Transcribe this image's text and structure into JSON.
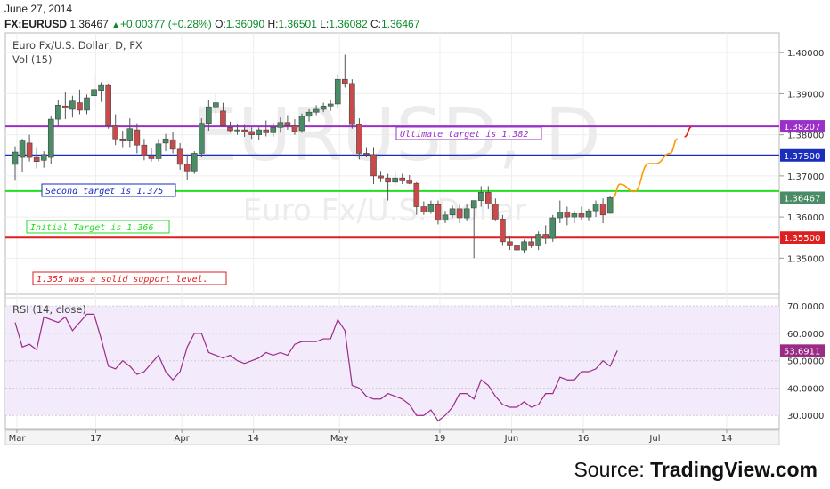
{
  "date": "June 27, 2014",
  "quote": {
    "symbol": "FX:EURUSD",
    "last": "1.36467",
    "change": "+0.00377 (+0.28%)",
    "open_label": "O:",
    "open": "1.36090",
    "high_label": "H:",
    "high": "1.36501",
    "low_label": "L:",
    "low": "1.36082",
    "close_label": "C:",
    "close": "1.36467",
    "up_color": "#0a8a2a"
  },
  "chart_data": [
    {
      "type": "candlestick",
      "title": "Euro Fx/U.S. Dollar, D, FX",
      "subtitle": "Vol (15)",
      "watermark_big": "EURUSD, D",
      "watermark_small": "Euro Fx/U.S. Dollar",
      "ylim": [
        1.3425,
        1.4035
      ],
      "price_ticks": [
        "1.40000",
        "1.39000",
        "1.38000",
        "1.37000",
        "1.36000",
        "1.35000"
      ],
      "x_ticks": [
        "Mar",
        "17",
        "Apr",
        "14",
        "May",
        "19",
        "Jun",
        "16",
        "Jul",
        "14"
      ],
      "candles": [
        {
          "o": 1.3728,
          "h": 1.3772,
          "l": 1.3688,
          "c": 1.3758
        },
        {
          "o": 1.3745,
          "h": 1.379,
          "l": 1.371,
          "c": 1.3785
        },
        {
          "o": 1.378,
          "h": 1.38,
          "l": 1.3735,
          "c": 1.3745
        },
        {
          "o": 1.3745,
          "h": 1.377,
          "l": 1.3718,
          "c": 1.3735
        },
        {
          "o": 1.3738,
          "h": 1.376,
          "l": 1.372,
          "c": 1.3752
        },
        {
          "o": 1.3745,
          "h": 1.3845,
          "l": 1.373,
          "c": 1.3838
        },
        {
          "o": 1.3838,
          "h": 1.3885,
          "l": 1.382,
          "c": 1.3872
        },
        {
          "o": 1.387,
          "h": 1.3905,
          "l": 1.3838,
          "c": 1.3865
        },
        {
          "o": 1.3862,
          "h": 1.3895,
          "l": 1.3842,
          "c": 1.3882
        },
        {
          "o": 1.3878,
          "h": 1.391,
          "l": 1.385,
          "c": 1.386
        },
        {
          "o": 1.386,
          "h": 1.3898,
          "l": 1.385,
          "c": 1.389
        },
        {
          "o": 1.3895,
          "h": 1.394,
          "l": 1.387,
          "c": 1.391
        },
        {
          "o": 1.3908,
          "h": 1.3928,
          "l": 1.388,
          "c": 1.392
        },
        {
          "o": 1.392,
          "h": 1.3925,
          "l": 1.3815,
          "c": 1.3822
        },
        {
          "o": 1.3822,
          "h": 1.385,
          "l": 1.3775,
          "c": 1.379
        },
        {
          "o": 1.379,
          "h": 1.381,
          "l": 1.377,
          "c": 1.3785
        },
        {
          "o": 1.3785,
          "h": 1.384,
          "l": 1.377,
          "c": 1.3815
        },
        {
          "o": 1.3812,
          "h": 1.3828,
          "l": 1.3755,
          "c": 1.3775
        },
        {
          "o": 1.3775,
          "h": 1.379,
          "l": 1.3738,
          "c": 1.375
        },
        {
          "o": 1.3748,
          "h": 1.3768,
          "l": 1.3735,
          "c": 1.3742
        },
        {
          "o": 1.3742,
          "h": 1.379,
          "l": 1.3736,
          "c": 1.3778
        },
        {
          "o": 1.378,
          "h": 1.3802,
          "l": 1.376,
          "c": 1.379
        },
        {
          "o": 1.3788,
          "h": 1.3808,
          "l": 1.3755,
          "c": 1.3765
        },
        {
          "o": 1.3765,
          "h": 1.378,
          "l": 1.3715,
          "c": 1.3728
        },
        {
          "o": 1.3728,
          "h": 1.3752,
          "l": 1.369,
          "c": 1.3712
        },
        {
          "o": 1.3712,
          "h": 1.376,
          "l": 1.3705,
          "c": 1.3755
        },
        {
          "o": 1.3755,
          "h": 1.384,
          "l": 1.3745,
          "c": 1.3828
        },
        {
          "o": 1.3828,
          "h": 1.3885,
          "l": 1.381,
          "c": 1.3868
        },
        {
          "o": 1.3868,
          "h": 1.3898,
          "l": 1.385,
          "c": 1.3878
        },
        {
          "o": 1.3858,
          "h": 1.3878,
          "l": 1.3828,
          "c": 1.3822
        },
        {
          "o": 1.3818,
          "h": 1.3832,
          "l": 1.3808,
          "c": 1.381
        },
        {
          "o": 1.381,
          "h": 1.3825,
          "l": 1.38,
          "c": 1.3812
        },
        {
          "o": 1.3812,
          "h": 1.3824,
          "l": 1.3795,
          "c": 1.3808
        },
        {
          "o": 1.3808,
          "h": 1.3818,
          "l": 1.379,
          "c": 1.38
        },
        {
          "o": 1.38,
          "h": 1.3818,
          "l": 1.3788,
          "c": 1.3812
        },
        {
          "o": 1.3812,
          "h": 1.3835,
          "l": 1.3796,
          "c": 1.3805
        },
        {
          "o": 1.3805,
          "h": 1.383,
          "l": 1.3795,
          "c": 1.3818
        },
        {
          "o": 1.3818,
          "h": 1.3842,
          "l": 1.3805,
          "c": 1.383
        },
        {
          "o": 1.383,
          "h": 1.3848,
          "l": 1.3812,
          "c": 1.3822
        },
        {
          "o": 1.3822,
          "h": 1.3838,
          "l": 1.38,
          "c": 1.3808
        },
        {
          "o": 1.381,
          "h": 1.3852,
          "l": 1.3805,
          "c": 1.3845
        },
        {
          "o": 1.3845,
          "h": 1.3862,
          "l": 1.3832,
          "c": 1.3855
        },
        {
          "o": 1.3855,
          "h": 1.3872,
          "l": 1.3848,
          "c": 1.3862
        },
        {
          "o": 1.3862,
          "h": 1.3878,
          "l": 1.3855,
          "c": 1.387
        },
        {
          "o": 1.387,
          "h": 1.3885,
          "l": 1.3858,
          "c": 1.3875
        },
        {
          "o": 1.3875,
          "h": 1.3948,
          "l": 1.3865,
          "c": 1.3935
        },
        {
          "o": 1.3935,
          "h": 1.3995,
          "l": 1.3915,
          "c": 1.3925
        },
        {
          "o": 1.3925,
          "h": 1.3935,
          "l": 1.3815,
          "c": 1.3825
        },
        {
          "o": 1.3825,
          "h": 1.384,
          "l": 1.374,
          "c": 1.3755
        },
        {
          "o": 1.3755,
          "h": 1.377,
          "l": 1.3745,
          "c": 1.3752
        },
        {
          "o": 1.3752,
          "h": 1.377,
          "l": 1.368,
          "c": 1.37
        },
        {
          "o": 1.37,
          "h": 1.3712,
          "l": 1.3685,
          "c": 1.3695
        },
        {
          "o": 1.3695,
          "h": 1.3705,
          "l": 1.364,
          "c": 1.3685
        },
        {
          "o": 1.3685,
          "h": 1.3712,
          "l": 1.3678,
          "c": 1.3695
        },
        {
          "o": 1.3695,
          "h": 1.3705,
          "l": 1.368,
          "c": 1.3688
        },
        {
          "o": 1.369,
          "h": 1.3702,
          "l": 1.368,
          "c": 1.3682
        },
        {
          "o": 1.3682,
          "h": 1.3685,
          "l": 1.3605,
          "c": 1.3625
        },
        {
          "o": 1.3625,
          "h": 1.3638,
          "l": 1.3605,
          "c": 1.3612
        },
        {
          "o": 1.3612,
          "h": 1.364,
          "l": 1.3608,
          "c": 1.363
        },
        {
          "o": 1.363,
          "h": 1.364,
          "l": 1.3582,
          "c": 1.3592
        },
        {
          "o": 1.3592,
          "h": 1.3615,
          "l": 1.3585,
          "c": 1.3605
        },
        {
          "o": 1.3605,
          "h": 1.3628,
          "l": 1.3598,
          "c": 1.362
        },
        {
          "o": 1.362,
          "h": 1.363,
          "l": 1.3585,
          "c": 1.3598
        },
        {
          "o": 1.3598,
          "h": 1.363,
          "l": 1.359,
          "c": 1.362
        },
        {
          "o": 1.3622,
          "h": 1.364,
          "l": 1.35,
          "c": 1.364
        },
        {
          "o": 1.364,
          "h": 1.3675,
          "l": 1.3625,
          "c": 1.366
        },
        {
          "o": 1.366,
          "h": 1.3675,
          "l": 1.362,
          "c": 1.3632
        },
        {
          "o": 1.3632,
          "h": 1.3645,
          "l": 1.359,
          "c": 1.3595
        },
        {
          "o": 1.3595,
          "h": 1.3605,
          "l": 1.353,
          "c": 1.354
        },
        {
          "o": 1.354,
          "h": 1.3555,
          "l": 1.352,
          "c": 1.353
        },
        {
          "o": 1.353,
          "h": 1.3545,
          "l": 1.351,
          "c": 1.352
        },
        {
          "o": 1.352,
          "h": 1.3545,
          "l": 1.3512,
          "c": 1.354
        },
        {
          "o": 1.354,
          "h": 1.3552,
          "l": 1.3525,
          "c": 1.353
        },
        {
          "o": 1.353,
          "h": 1.3565,
          "l": 1.352,
          "c": 1.3558
        },
        {
          "o": 1.3558,
          "h": 1.358,
          "l": 1.3535,
          "c": 1.3548
        },
        {
          "o": 1.3548,
          "h": 1.3605,
          "l": 1.354,
          "c": 1.3598
        },
        {
          "o": 1.3598,
          "h": 1.364,
          "l": 1.3585,
          "c": 1.3612
        },
        {
          "o": 1.3612,
          "h": 1.3625,
          "l": 1.358,
          "c": 1.36
        },
        {
          "o": 1.36,
          "h": 1.3615,
          "l": 1.3585,
          "c": 1.3608
        },
        {
          "o": 1.3608,
          "h": 1.3625,
          "l": 1.3592,
          "c": 1.36
        },
        {
          "o": 1.36,
          "h": 1.362,
          "l": 1.359,
          "c": 1.3615
        },
        {
          "o": 1.3615,
          "h": 1.364,
          "l": 1.36,
          "c": 1.3632
        },
        {
          "o": 1.3632,
          "h": 1.3645,
          "l": 1.3585,
          "c": 1.3605
        },
        {
          "o": 1.3609,
          "h": 1.365,
          "l": 1.3608,
          "c": 1.3647
        }
      ],
      "projection": [
        [
          1.3647,
          0
        ],
        [
          1.368,
          1
        ],
        [
          1.3662,
          3
        ],
        [
          1.373,
          5
        ],
        [
          1.373,
          6
        ],
        [
          1.3755,
          8
        ],
        [
          1.379,
          9
        ]
      ],
      "projection_red": [
        [
          1.3795,
          0
        ],
        [
          1.382,
          1
        ]
      ],
      "levels": [
        {
          "price": 1.38207,
          "color": "#9b30c8",
          "label": "1.38207",
          "text": "Ultimate target is 1.382"
        },
        {
          "price": 1.375,
          "color": "#1a2dbb",
          "label": "1.37500",
          "text": "Second target is 1.375"
        },
        {
          "price": 1.36631,
          "color": "#22dd22",
          "label": "",
          "text": "Initial Target is 1.366"
        },
        {
          "price": 1.355,
          "color": "#dd1f1f",
          "label": "1.35500",
          "text": "1.355 was a solid support level."
        }
      ],
      "last_price_label": "1.36467",
      "up_color": "#4a8c66",
      "down_color": "#c94a4a",
      "projection_color": "#ff9900"
    },
    {
      "type": "line",
      "title": "RSI (14, close)",
      "ylim": [
        26.5,
        72
      ],
      "y_ticks": [
        "70.0000",
        "60.0000",
        "50.0000",
        "40.0000",
        "30.0000"
      ],
      "band": [
        30,
        70
      ],
      "values": [
        64,
        55,
        56,
        54,
        66,
        65,
        64,
        66,
        61,
        64,
        67,
        67,
        58,
        48,
        47,
        50,
        48,
        45,
        46,
        49,
        52,
        46,
        43,
        46,
        55,
        60,
        60,
        53,
        52,
        51,
        52,
        50,
        49,
        50,
        51,
        53,
        52,
        53,
        52,
        56,
        57,
        57,
        57,
        58,
        58,
        65,
        61,
        41,
        40,
        37,
        36,
        36,
        38,
        37,
        36,
        34,
        30,
        30,
        32,
        28,
        30,
        33,
        38,
        38,
        36,
        43,
        41,
        37,
        34,
        33,
        33,
        35,
        33,
        34,
        38,
        38,
        44,
        43,
        43,
        46,
        46,
        47,
        50,
        48,
        53.6911
      ],
      "last_label": "53.6911",
      "line_color": "#9a2c86"
    }
  ],
  "source": {
    "prefix": "Source: ",
    "brand": "TradingView.com"
  }
}
